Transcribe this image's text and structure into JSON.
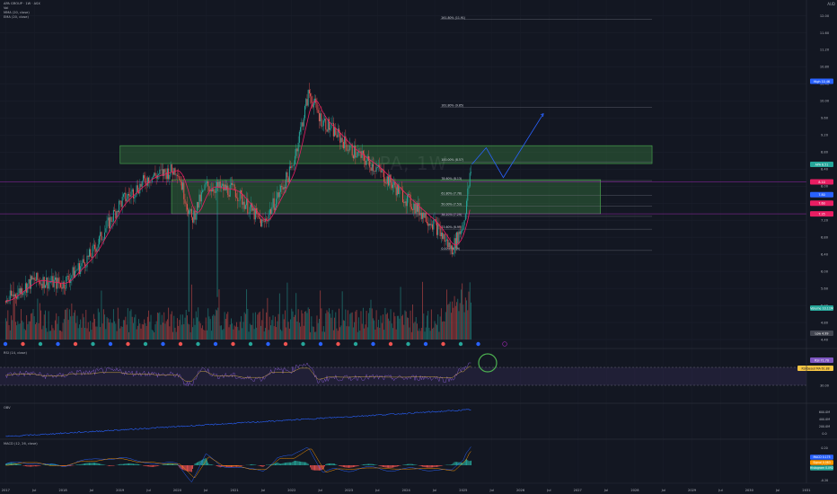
{
  "header": {
    "symbol_title": "APA GROUP · 1W · ASX",
    "legend_lines": [
      "Vol",
      "MMA (20, close)",
      "EMA (20, close)"
    ],
    "watermark": "APA, 1W",
    "axis_unit": "AUD"
  },
  "colors": {
    "background": "#131722",
    "up": "#26a69a",
    "down": "#ef5350",
    "ma": "#e91e63",
    "zone_fill": "rgba(76,175,80,0.28)",
    "zone_border": "#4caf50",
    "projection": "#2962ff",
    "rsi_line": "#7e57c2",
    "obv_line": "#2962ff",
    "highlight_circle": "#4caf50"
  },
  "price_axis": {
    "labels": [
      "12.00",
      "11.60",
      "11.20",
      "10.80",
      "10.40",
      "10.00",
      "9.60",
      "9.20",
      "8.80",
      "8.40",
      "8.00",
      "7.60",
      "7.20",
      "6.80",
      "6.40",
      "6.00",
      "5.60",
      "5.20",
      "4.80",
      "4.40"
    ],
    "markers": [
      {
        "text": "High 10.46",
        "color": "#2962ff"
      },
      {
        "text": "APA 8.51",
        "color": "#26a69a"
      },
      {
        "text": "8.10",
        "color": "#e91e63"
      },
      {
        "text": "7.80",
        "color": "#2962ff"
      },
      {
        "text": "7.60",
        "color": "#e91e63"
      },
      {
        "text": "7.35",
        "color": "#e91e63"
      },
      {
        "text": "Volume 10.11M",
        "color": "#26a69a"
      },
      {
        "text": "Low 4.99",
        "color": "#434651"
      }
    ]
  },
  "fib_levels": [
    {
      "label": "261.80% (11.91)",
      "value": 11.91
    },
    {
      "label": "161.80% (9.85)",
      "value": 9.85
    },
    {
      "label": "100.00% (8.57)",
      "value": 8.57
    },
    {
      "label": "78.60% (8.13)",
      "value": 8.13
    },
    {
      "label": "61.80% (7.78)",
      "value": 7.78
    },
    {
      "label": "50.00% (7.53)",
      "value": 7.53
    },
    {
      "label": "38.20% (7.29)",
      "value": 7.29
    },
    {
      "label": "23.60% (6.99)",
      "value": 6.99
    },
    {
      "label": "0.00% (6.49)",
      "value": 6.49
    }
  ],
  "time_axis": {
    "labels": [
      "2017",
      "Jul",
      "2018",
      "Jul",
      "2019",
      "Jul",
      "2020",
      "Jul",
      "2021",
      "Jul",
      "2022",
      "Jul",
      "2023",
      "Jul",
      "2024",
      "Jul",
      "2025",
      "Jul",
      "2026",
      "Jul",
      "2027",
      "Jul",
      "2028",
      "Jul",
      "2029",
      "Jul",
      "2030",
      "Jul",
      "2031"
    ]
  },
  "rsi_panel": {
    "title": "RSI (14, close)",
    "value_label": "RSI 71.70",
    "band_labels": [
      "70.00",
      "30.00"
    ],
    "marker_text": "RSI-based MA 61.88"
  },
  "obv_panel": {
    "title": "OBV",
    "labels": [
      "600.0M",
      "400.0M",
      "200.0M",
      "0.0"
    ]
  },
  "macd_panel": {
    "title": "MACD (12, 26, close)",
    "labels": [
      "0.20",
      "0.00",
      "-0.20"
    ],
    "markers": [
      {
        "text": "MACD 0.175",
        "color": "#2962ff"
      },
      {
        "text": "Signal 0.083",
        "color": "#ff9800"
      },
      {
        "text": "Histogram 0.092",
        "color": "#26a69a"
      }
    ]
  },
  "chart_data": [
    {
      "type": "line",
      "title": "APA GROUP · 1W · ASX",
      "xlabel": "",
      "ylabel": "",
      "x": [
        2017.0,
        2017.5,
        2018.0,
        2018.5,
        2019.0,
        2019.5,
        2020.0,
        2020.25,
        2020.5,
        2021.0,
        2021.5,
        2022.0,
        2022.3,
        2022.5,
        2022.8,
        2023.0,
        2023.5,
        2024.0,
        2024.5,
        2024.8,
        2025.0,
        2025.15
      ],
      "series": [
        {
          "name": "close",
          "values": [
            5.3,
            5.8,
            5.7,
            6.4,
            7.6,
            8.2,
            8.4,
            7.2,
            8.0,
            7.9,
            7.1,
            8.4,
            10.2,
            9.6,
            9.2,
            8.9,
            8.4,
            7.7,
            7.1,
            6.5,
            7.1,
            8.51
          ]
        }
      ],
      "ylim": [
        4.4,
        12.2
      ],
      "zones": [
        {
          "y_range": [
            8.53,
            8.95
          ],
          "x_range": [
            2019.0,
            2028.3
          ]
        },
        {
          "y_range": [
            7.35,
            8.15
          ],
          "x_range": [
            2019.9,
            2027.4
          ]
        }
      ],
      "projection": {
        "x": [
          2025.15,
          2025.4,
          2025.7,
          2026.4
        ],
        "y": [
          8.51,
          8.9,
          8.2,
          9.7
        ]
      },
      "high": 10.46,
      "low": 4.99,
      "last": 8.51,
      "grid": true
    },
    {
      "type": "bar",
      "title": "Volume",
      "last_value": "10.11M"
    },
    {
      "type": "line",
      "title": "RSI (14, close)",
      "ylim": [
        0,
        100
      ],
      "bands": [
        70,
        30
      ],
      "last_value": 71.7
    },
    {
      "type": "line",
      "title": "OBV"
    },
    {
      "type": "bar",
      "title": "MACD (12, 26, close)",
      "series": [
        {
          "name": "MACD",
          "last": 0.175
        },
        {
          "name": "Signal",
          "last": 0.083
        },
        {
          "name": "Histogram",
          "last": 0.092
        }
      ]
    }
  ]
}
